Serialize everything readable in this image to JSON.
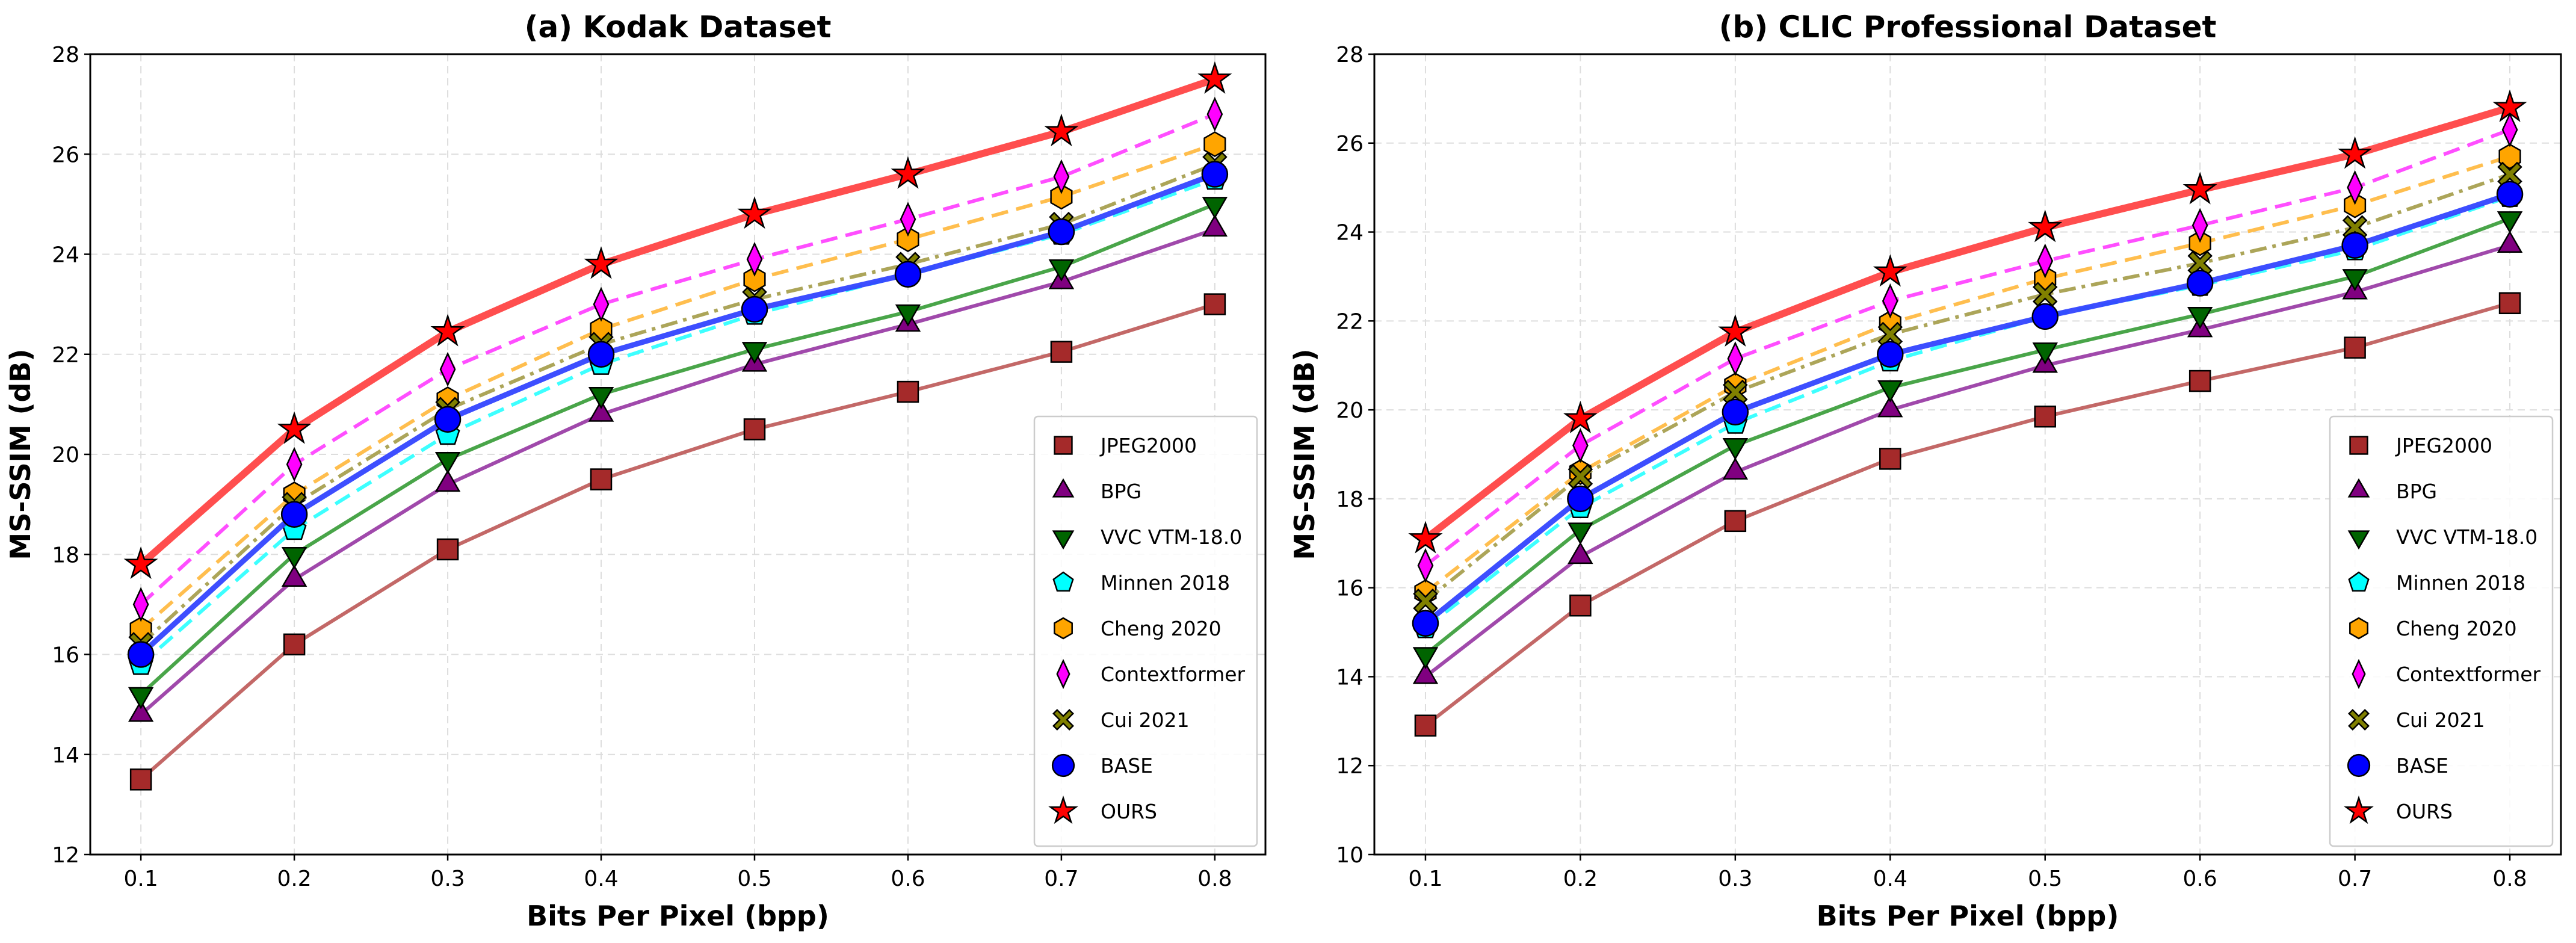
{
  "chart_data": [
    {
      "type": "line",
      "title": "(a) Kodak Dataset",
      "xlabel": "Bits Per Pixel (bpp)",
      "ylabel": "MS-SSIM (dB)",
      "x": [
        0.1,
        0.2,
        0.3,
        0.4,
        0.5,
        0.6,
        0.7,
        0.8
      ],
      "xticks": [
        "0.1",
        "0.2",
        "0.3",
        "0.4",
        "0.5",
        "0.6",
        "0.7",
        "0.8"
      ],
      "xlim": [
        0.067,
        0.833
      ],
      "ylim": [
        12,
        28
      ],
      "yticks": [
        "12",
        "14",
        "16",
        "18",
        "20",
        "22",
        "24",
        "26",
        "28"
      ],
      "grid": true,
      "legend_position": "bottom-right",
      "series": [
        {
          "name": "JPEG2000",
          "values": [
            13.5,
            16.2,
            18.1,
            19.5,
            20.5,
            21.25,
            22.05,
            23.0
          ]
        },
        {
          "name": "BPG",
          "values": [
            14.8,
            17.5,
            19.4,
            20.8,
            21.8,
            22.6,
            23.45,
            24.5
          ]
        },
        {
          "name": "VVC VTM-18.0",
          "values": [
            15.2,
            18.0,
            19.9,
            21.2,
            22.1,
            22.85,
            23.75,
            25.0
          ]
        },
        {
          "name": "Minnen 2018",
          "values": [
            15.8,
            18.5,
            20.4,
            21.8,
            22.8,
            23.6,
            24.4,
            25.5
          ]
        },
        {
          "name": "Cheng 2020",
          "values": [
            16.5,
            19.2,
            21.1,
            22.5,
            23.5,
            24.3,
            25.15,
            26.2
          ]
        },
        {
          "name": "Contextformer",
          "values": [
            17.0,
            19.8,
            21.7,
            23.0,
            23.9,
            24.7,
            25.55,
            26.8
          ]
        },
        {
          "name": "Cui 2021",
          "values": [
            16.2,
            19.0,
            20.9,
            22.2,
            23.1,
            23.8,
            24.6,
            25.8
          ]
        },
        {
          "name": "BASE",
          "values": [
            16.0,
            18.8,
            20.7,
            22.0,
            22.9,
            23.6,
            24.45,
            25.6
          ]
        },
        {
          "name": "OURS",
          "values": [
            17.8,
            20.5,
            22.45,
            23.8,
            24.8,
            25.6,
            26.45,
            27.5
          ]
        }
      ]
    },
    {
      "type": "line",
      "title": "(b) CLIC Professional Dataset",
      "xlabel": "Bits Per Pixel (bpp)",
      "ylabel": "MS-SSIM (dB)",
      "x": [
        0.1,
        0.2,
        0.3,
        0.4,
        0.5,
        0.6,
        0.7,
        0.8
      ],
      "xticks": [
        "0.1",
        "0.2",
        "0.3",
        "0.4",
        "0.5",
        "0.6",
        "0.7",
        "0.8"
      ],
      "xlim": [
        0.067,
        0.833
      ],
      "ylim": [
        10,
        28
      ],
      "yticks": [
        "10",
        "12",
        "14",
        "16",
        "18",
        "20",
        "22",
        "24",
        "26",
        "28"
      ],
      "grid": true,
      "legend_position": "bottom-right",
      "series": [
        {
          "name": "JPEG2000",
          "values": [
            12.9,
            15.6,
            17.5,
            18.9,
            19.85,
            20.65,
            21.4,
            22.4
          ]
        },
        {
          "name": "BPG",
          "values": [
            14.0,
            16.7,
            18.6,
            20.0,
            21.0,
            21.8,
            22.65,
            23.7
          ]
        },
        {
          "name": "VVC VTM-18.0",
          "values": [
            14.5,
            17.3,
            19.2,
            20.5,
            21.35,
            22.15,
            23.0,
            24.3
          ]
        },
        {
          "name": "Minnen 2018",
          "values": [
            15.1,
            17.8,
            19.7,
            21.1,
            22.1,
            22.8,
            23.6,
            24.8
          ]
        },
        {
          "name": "Cheng 2020",
          "values": [
            15.9,
            18.6,
            20.55,
            21.95,
            22.95,
            23.75,
            24.6,
            25.7
          ]
        },
        {
          "name": "Contextformer",
          "values": [
            16.5,
            19.2,
            21.15,
            22.45,
            23.35,
            24.15,
            25.0,
            26.3
          ]
        },
        {
          "name": "Cui 2021",
          "values": [
            15.7,
            18.5,
            20.4,
            21.7,
            22.6,
            23.3,
            24.1,
            25.3
          ]
        },
        {
          "name": "BASE",
          "values": [
            15.2,
            18.0,
            19.95,
            21.25,
            22.1,
            22.85,
            23.7,
            24.85
          ]
        },
        {
          "name": "OURS",
          "values": [
            17.1,
            19.8,
            21.75,
            23.1,
            24.1,
            24.95,
            25.75,
            26.8
          ]
        }
      ]
    }
  ],
  "styles": {
    "JPEG2000": {
      "line": "#c0605f",
      "marker": "#a52a2a",
      "shape": "square",
      "dash": "solid"
    },
    "BPG": {
      "line": "#9b3fa6",
      "marker": "#800080",
      "shape": "triangle-up",
      "dash": "solid"
    },
    "VVC VTM-18.0": {
      "line": "#3fa03f",
      "marker": "#006400",
      "shape": "triangle-down",
      "dash": "solid"
    },
    "Minnen 2018": {
      "line": "#33ffff",
      "marker": "#00ffff",
      "shape": "pentagon",
      "dash": "dashed"
    },
    "Cheng 2020": {
      "line": "#ffbb44",
      "marker": "#ffa500",
      "shape": "hexagon",
      "dash": "dashed"
    },
    "Contextformer": {
      "line": "#ff44ff",
      "marker": "#ff00ff",
      "shape": "diamond",
      "dash": "dashed"
    },
    "Cui 2021": {
      "line": "#a8a050",
      "marker": "#808000",
      "shape": "x",
      "dash": "dashdot"
    },
    "BASE": {
      "line": "#3344ff",
      "marker": "#0000ff",
      "shape": "circle",
      "dash": "solid"
    },
    "OURS": {
      "line": "#ff4444",
      "marker": "#ff0000",
      "shape": "star",
      "dash": "solid"
    }
  }
}
